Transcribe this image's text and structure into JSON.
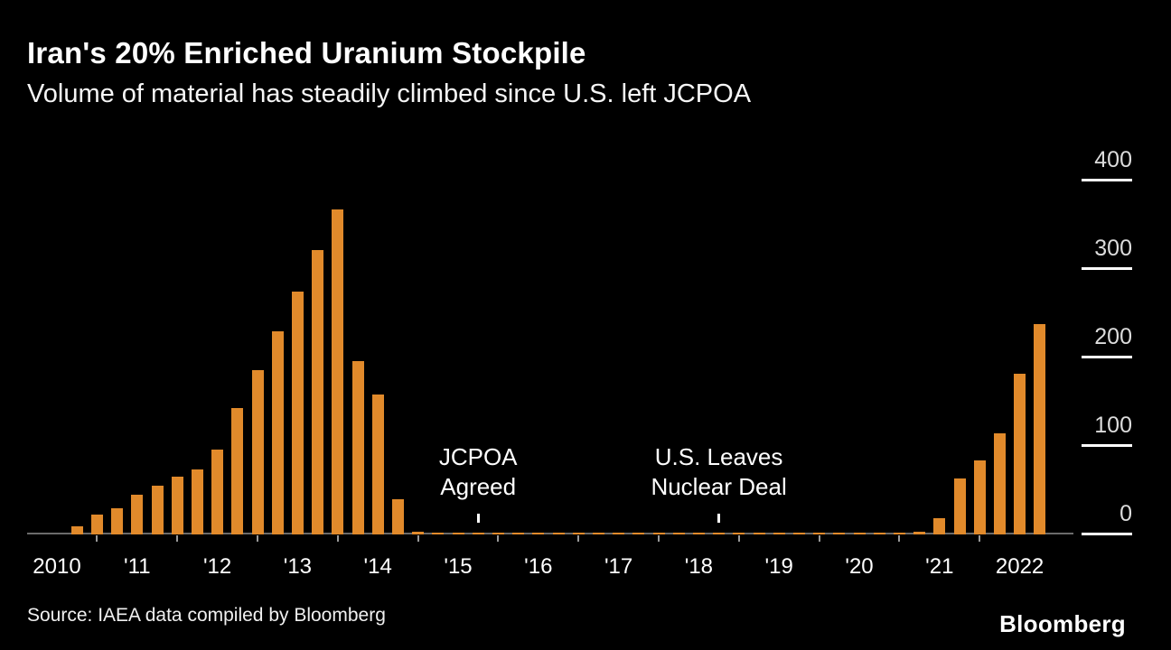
{
  "header": {
    "title": "Iran's 20% Enriched Uranium Stockpile",
    "subtitle": "Volume of material has steadily climbed since U.S. left JCPOA"
  },
  "footer": {
    "source": "Source: IAEA data compiled by Bloomberg",
    "logo": "Bloomberg"
  },
  "colors": {
    "background": "#000000",
    "bar": "#E18A2B",
    "text": "#FFFFFF",
    "axis_line": "#6B6B6B",
    "tick_label": "#DCDCDC"
  },
  "chart_data": {
    "type": "bar",
    "title": "Iran's 20% Enriched Uranium Stockpile",
    "subtitle": "Volume of material has steadily climbed since U.S. left JCPOA",
    "frequency": "quarterly",
    "x_start_year": 2010,
    "xlabel": "",
    "ylabel": "",
    "ylim": [
      0,
      400
    ],
    "y_ticks": [
      0,
      100,
      200,
      300,
      400
    ],
    "x_tick_labels": [
      "2010",
      "'11",
      "'12",
      "'13",
      "'14",
      "'15",
      "'16",
      "'17",
      "'18",
      "'19",
      "'20",
      "'21",
      "2022"
    ],
    "values": [
      0,
      9,
      22,
      30,
      45,
      55,
      65,
      73,
      96,
      143,
      186,
      230,
      274,
      321,
      367,
      196,
      158,
      40,
      3,
      2,
      2,
      2,
      2,
      2,
      2,
      2,
      2,
      2,
      2,
      2,
      2,
      2,
      2,
      2,
      2,
      2,
      2,
      2,
      2,
      2,
      2,
      2,
      2,
      3,
      18,
      63,
      84,
      114,
      182,
      238
    ],
    "annotations": [
      {
        "label_lines": [
          "JCPOA",
          "Agreed"
        ],
        "quarter_index": 21
      },
      {
        "label_lines": [
          "U.S. Leaves",
          "Nuclear Deal"
        ],
        "quarter_index": 33
      }
    ],
    "legend": "none",
    "grid": "off"
  }
}
